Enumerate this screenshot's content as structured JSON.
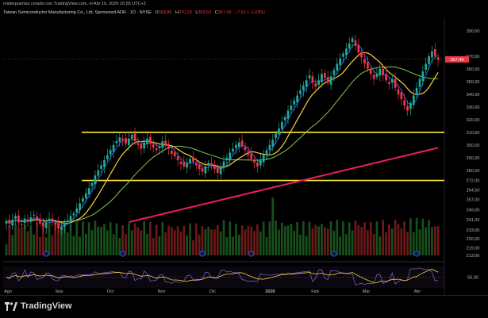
{
  "header": {
    "credit": "misterpuertas creado con TradingView.com, el Abr 16, 2026 16:55 UTC+2"
  },
  "symbol_line": {
    "name": "Taiwan Semiconductor Manufacturing Co., Ltd. Sponsored ADR · 1D · NYSE",
    "open_label": "O",
    "open": "368,86",
    "high_label": "H",
    "high": "370,20",
    "low_label": "L",
    "low": "363,52",
    "close_label": "C",
    "close": "367,49",
    "change": "−7,61 (−2,03%)"
  },
  "price_tag": "367,49",
  "footer": {
    "brand": "TradingView"
  },
  "colors": {
    "up": "#22ab94",
    "down": "#f23645",
    "ema_fast": "#2962ff",
    "ma_mid": "#f7d13d",
    "ma_slow": "#7ec94d",
    "ma_long": "#e91e63",
    "hline": "#ffeb3b",
    "rsi": "#7e57c2",
    "rsi_ma": "#f7d13d"
  },
  "chart_data": {
    "type": "candlestick",
    "title": "Taiwan Semiconductor Manufacturing Co., Ltd. Sponsored ADR · 1D · NYSE",
    "xlabel": "",
    "ylabel": "",
    "ylim": [
      213,
      393
    ],
    "x_ticks": [
      "Ago",
      "Sep",
      "Oct",
      "Nov",
      "Dic",
      "2026",
      "Feb",
      "Mar",
      "Abr"
    ],
    "y_ticks": [
      "390,00",
      "370,00",
      "360,00",
      "350,00",
      "340,00",
      "330,00",
      "320,00",
      "310,00",
      "300,00",
      "290,00",
      "280,00",
      "272,00",
      "264,50",
      "257,00",
      "249,00",
      "241,00",
      "233,00",
      "226,00",
      "219,00",
      "213,00"
    ],
    "horizontal_lines": [
      310,
      272
    ],
    "rsi_tick": "50,00",
    "closes": [
      240,
      238,
      241,
      244,
      239,
      237,
      242,
      240,
      243,
      245,
      241,
      238,
      236,
      239,
      242,
      240,
      237,
      234,
      236,
      239,
      241,
      244,
      246,
      250,
      254,
      258,
      262,
      266,
      270,
      276,
      280,
      284,
      288,
      292,
      296,
      300,
      303,
      306,
      304,
      301,
      305,
      308,
      303,
      300,
      297,
      302,
      305,
      301,
      298,
      296,
      299,
      303,
      300,
      297,
      293,
      291,
      288,
      285,
      283,
      286,
      289,
      287,
      284,
      281,
      279,
      283,
      286,
      284,
      281,
      278,
      282,
      287,
      290,
      294,
      297,
      300,
      302,
      299,
      296,
      292,
      289,
      286,
      283,
      288,
      292,
      296,
      300,
      304,
      309,
      313,
      318,
      322,
      327,
      331,
      335,
      339,
      343,
      347,
      351,
      355,
      349,
      346,
      351,
      356,
      353,
      349,
      354,
      359,
      364,
      368,
      372,
      376,
      380,
      384,
      378,
      373,
      369,
      364,
      360,
      356,
      352,
      356,
      360,
      355,
      351,
      348,
      352,
      345,
      340,
      336,
      331,
      327,
      333,
      339,
      345,
      352,
      358,
      364,
      370,
      374,
      370,
      367
    ]
  }
}
